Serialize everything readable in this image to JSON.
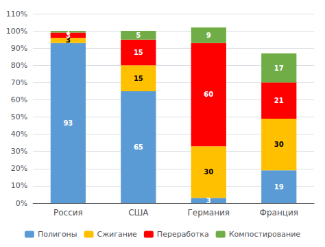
{
  "chart_data": {
    "type": "bar",
    "stacked": true,
    "categories": [
      "Россия",
      "США",
      "Германия",
      "Франция"
    ],
    "series": [
      {
        "name": "Полигоны",
        "color": "#5B9BD5",
        "values": [
          93,
          65,
          3,
          19
        ]
      },
      {
        "name": "Сжигание",
        "color": "#FFC000",
        "values": [
          3,
          15,
          30,
          30
        ]
      },
      {
        "name": "Переработка",
        "color": "#FF0000",
        "values": [
          3,
          15,
          60,
          21
        ]
      },
      {
        "name": "Компостирование",
        "color": "#70AD47",
        "values": [
          1,
          5,
          9,
          17
        ]
      }
    ],
    "ylim": [
      0,
      110
    ],
    "yticks": [
      {
        "value": 0,
        "label": "0%"
      },
      {
        "value": 10,
        "label": "10%"
      },
      {
        "value": 20,
        "label": "20%"
      },
      {
        "value": 30,
        "label": "30%"
      },
      {
        "value": 40,
        "label": "40%"
      },
      {
        "value": 50,
        "label": "50%"
      },
      {
        "value": 60,
        "label": "60%"
      },
      {
        "value": 70,
        "label": "70%"
      },
      {
        "value": 80,
        "label": "80%"
      },
      {
        "value": 90,
        "label": "90%"
      },
      {
        "value": 100,
        "label": "100%"
      },
      {
        "value": 110,
        "label": "110%"
      }
    ],
    "grid": true,
    "legend": "bottom",
    "data_labels": true
  }
}
